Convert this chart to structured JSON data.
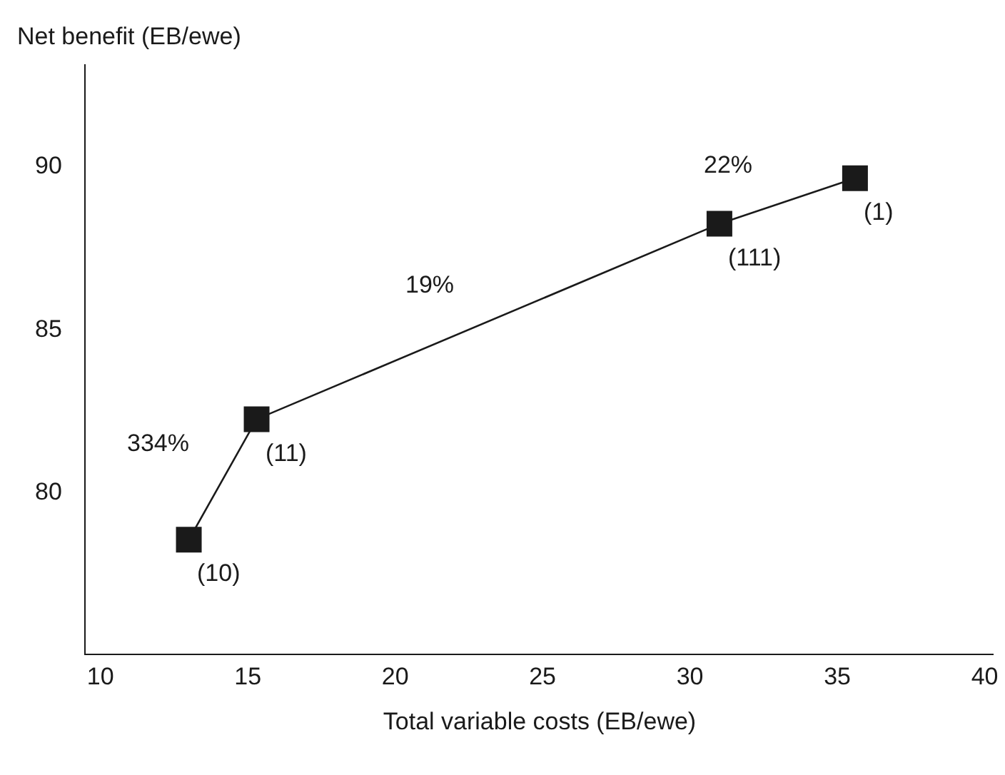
{
  "chart_data": {
    "type": "line",
    "xlabel": "Total variable costs (EB/ewe)",
    "ylabel": "Net benefit (EB/ewe)",
    "x": [
      13,
      15.3,
      31,
      35.6
    ],
    "series": [
      {
        "color": "#1a1a1a",
        "values": [
          78.5,
          82.2,
          88.2,
          89.6
        ]
      }
    ],
    "marker": "square",
    "line_style": "solid",
    "xlim": [
      9.5,
      40.3
    ],
    "xticks": [
      10,
      15,
      20,
      25,
      30,
      35,
      40
    ],
    "ylim": [
      75,
      93.1
    ],
    "yticks": [
      80,
      85,
      90
    ],
    "annotations": [
      {
        "text": "(10)",
        "x": 13,
        "y": 78.5
      },
      {
        "text": "(11)",
        "x": 15.3,
        "y": 82.2
      },
      {
        "text": "(111)",
        "x": 31,
        "y": 88.2
      },
      {
        "text": "(1)",
        "x": 35.6,
        "y": 89.6
      },
      {
        "text": "334%",
        "x": 14.15,
        "y": 80.35
      },
      {
        "text": "19%",
        "x": 23.15,
        "y": 85.2
      },
      {
        "text": "22%",
        "x": 33.3,
        "y": 88.9
      }
    ]
  }
}
